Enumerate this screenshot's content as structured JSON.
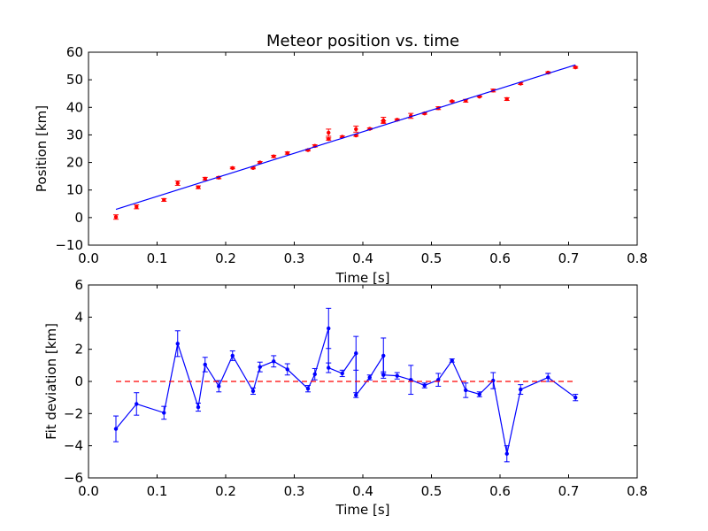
{
  "chart_data": [
    {
      "type": "scatter",
      "title": "Meteor position vs. time",
      "xlabel": "Time [s]",
      "ylabel": "Position [km]",
      "xlim": [
        0.0,
        0.8
      ],
      "ylim": [
        -10,
        60
      ],
      "xticks": [
        "0.0",
        "0.1",
        "0.2",
        "0.3",
        "0.4",
        "0.5",
        "0.6",
        "0.7",
        "0.8"
      ],
      "yticks": [
        "−10",
        "0",
        "10",
        "20",
        "30",
        "40",
        "50",
        "60"
      ],
      "grid": false,
      "colors": {
        "points": "#ff0000",
        "fit": "#0000ff"
      },
      "series": [
        {
          "kind": "errorbar-points",
          "x": [
            0.04,
            0.07,
            0.11,
            0.13,
            0.16,
            0.17,
            0.19,
            0.21,
            0.24,
            0.25,
            0.27,
            0.29,
            0.32,
            0.33,
            0.35,
            0.35,
            0.37,
            0.39,
            0.39,
            0.41,
            0.43,
            0.43,
            0.45,
            0.47,
            0.49,
            0.51,
            0.53,
            0.55,
            0.57,
            0.59,
            0.61,
            0.63,
            0.67,
            0.71
          ],
          "y": [
            0.2,
            3.9,
            6.4,
            12.5,
            11.0,
            14.1,
            14.5,
            18.0,
            18.0,
            20.0,
            22.2,
            23.4,
            24.5,
            26.0,
            28.5,
            30.8,
            29.3,
            29.8,
            32.1,
            32.2,
            34.7,
            35.3,
            35.5,
            36.9,
            37.8,
            39.7,
            42.2,
            42.4,
            43.9,
            46.1,
            43.0,
            48.6,
            52.6,
            54.5
          ],
          "yerr": [
            0.8,
            0.7,
            0.5,
            0.8,
            0.5,
            0.5,
            0.4,
            0.3,
            0.3,
            0.3,
            0.4,
            0.4,
            0.3,
            0.4,
            0.4,
            1.3,
            0.3,
            0.3,
            1.1,
            0.3,
            0.4,
            1.1,
            0.3,
            0.9,
            0.3,
            0.5,
            0.2,
            0.5,
            0.2,
            0.5,
            0.5,
            0.3,
            0.3,
            0.3
          ]
        },
        {
          "kind": "line",
          "x": [
            0.04,
            0.71
          ],
          "y": [
            3.0,
            55.4
          ]
        }
      ]
    },
    {
      "type": "line",
      "title": "",
      "xlabel": "Time [s]",
      "ylabel": "Fit deviation [km]",
      "xlim": [
        0.0,
        0.8
      ],
      "ylim": [
        -6,
        6
      ],
      "xticks": [
        "0.0",
        "0.1",
        "0.2",
        "0.3",
        "0.4",
        "0.5",
        "0.6",
        "0.7",
        "0.8"
      ],
      "yticks": [
        "−6",
        "−4",
        "−2",
        "0",
        "2",
        "4",
        "6"
      ],
      "grid": false,
      "colors": {
        "residuals": "#0000ff",
        "zero_line": "#ff0000"
      },
      "series": [
        {
          "kind": "errorbar-line",
          "x": [
            0.04,
            0.07,
            0.11,
            0.13,
            0.16,
            0.17,
            0.19,
            0.21,
            0.24,
            0.25,
            0.27,
            0.29,
            0.32,
            0.33,
            0.35,
            0.35,
            0.37,
            0.39,
            0.39,
            0.41,
            0.43,
            0.43,
            0.45,
            0.47,
            0.49,
            0.51,
            0.53,
            0.55,
            0.57,
            0.59,
            0.61,
            0.63,
            0.67,
            0.71
          ],
          "y": [
            -2.95,
            -1.4,
            -1.95,
            2.35,
            -1.6,
            1.05,
            -0.3,
            1.6,
            -0.6,
            0.9,
            1.25,
            0.75,
            -0.45,
            0.45,
            3.3,
            0.85,
            0.5,
            1.75,
            -0.85,
            0.25,
            1.6,
            0.4,
            0.35,
            0.1,
            -0.25,
            0.1,
            1.3,
            -0.55,
            -0.8,
            0.05,
            -4.5,
            -0.5,
            0.25,
            -1.0
          ],
          "yerr": [
            0.8,
            0.7,
            0.4,
            0.8,
            0.25,
            0.45,
            0.35,
            0.3,
            0.2,
            0.3,
            0.35,
            0.35,
            0.2,
            0.35,
            1.25,
            0.3,
            0.2,
            1.05,
            0.15,
            0.15,
            1.1,
            0.2,
            0.2,
            0.9,
            0.15,
            0.4,
            0.1,
            0.45,
            0.15,
            0.5,
            0.5,
            0.3,
            0.25,
            0.2
          ]
        },
        {
          "kind": "dashed-line",
          "x": [
            0.04,
            0.71
          ],
          "y": [
            0,
            0
          ]
        }
      ]
    }
  ]
}
